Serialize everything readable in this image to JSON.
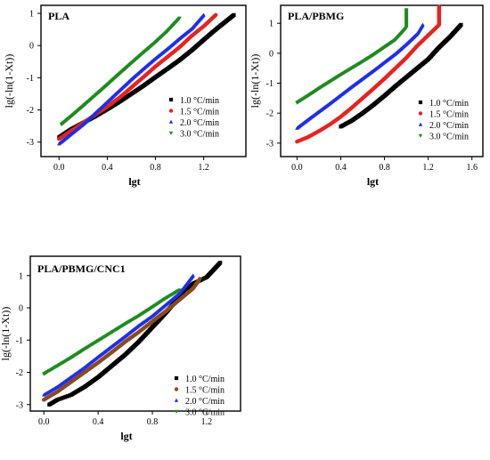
{
  "legend_entries": [
    "1.0 °C/min",
    "1.5 °C/min",
    "2.0 °C/min",
    "3.0 °C/min"
  ],
  "series_colors": [
    "#000000",
    "#e8231f",
    "#1f2ee8",
    "#1f8a1f"
  ],
  "panel3_colors": [
    "#000000",
    "#8b4a1e",
    "#1f2ee8",
    "#1f8a1f"
  ],
  "chart_data": [
    {
      "type": "scatter",
      "title": "PLA",
      "xlabel": "lgt",
      "ylabel": "lg(-ln(1-Xt))",
      "xlim": [
        -0.15,
        1.55
      ],
      "ylim": [
        -3.45,
        1.25
      ],
      "xticks": [
        "0.0",
        "0.4",
        "0.8",
        "1.2"
      ],
      "yticks": [
        "1",
        "0",
        "-1",
        "-2",
        "-3"
      ],
      "legend_position": "lower-right",
      "series": [
        {
          "name": "1.0 °C/min",
          "marker": "square",
          "x": [
            0.0,
            0.1,
            0.2,
            0.3,
            0.4,
            0.5,
            0.6,
            0.7,
            0.8,
            0.9,
            1.0,
            1.1,
            1.2,
            1.3,
            1.4,
            1.45
          ],
          "y": [
            -2.85,
            -2.6,
            -2.4,
            -2.2,
            -1.98,
            -1.75,
            -1.5,
            -1.25,
            -0.98,
            -0.72,
            -0.45,
            -0.15,
            0.18,
            0.5,
            0.8,
            0.95
          ]
        },
        {
          "name": "1.5 °C/min",
          "marker": "circle",
          "x": [
            0.0,
            0.1,
            0.2,
            0.3,
            0.4,
            0.5,
            0.6,
            0.7,
            0.8,
            0.9,
            1.0,
            1.1,
            1.2,
            1.3
          ],
          "y": [
            -2.9,
            -2.65,
            -2.4,
            -2.15,
            -1.9,
            -1.62,
            -1.3,
            -0.98,
            -0.65,
            -0.35,
            -0.05,
            0.3,
            0.6,
            0.95
          ]
        },
        {
          "name": "2.0 °C/min",
          "marker": "triangle-up",
          "x": [
            0.0,
            0.1,
            0.2,
            0.3,
            0.4,
            0.5,
            0.6,
            0.7,
            0.8,
            0.9,
            1.0,
            1.1,
            1.2
          ],
          "y": [
            -3.05,
            -2.75,
            -2.45,
            -2.1,
            -1.75,
            -1.4,
            -1.05,
            -0.72,
            -0.4,
            -0.1,
            0.22,
            0.52,
            0.95
          ]
        },
        {
          "name": "3.0 °C/min",
          "marker": "triangle-down",
          "x": [
            0.02,
            0.1,
            0.2,
            0.3,
            0.4,
            0.5,
            0.6,
            0.7,
            0.8,
            0.9,
            1.0
          ],
          "y": [
            -2.45,
            -2.2,
            -1.88,
            -1.55,
            -1.22,
            -0.88,
            -0.55,
            -0.22,
            0.1,
            0.45,
            0.85
          ]
        }
      ]
    },
    {
      "type": "scatter",
      "title": "PLA/PBMG",
      "xlabel": "lgt",
      "ylabel": "lg(-ln(1-Xt))",
      "xlim": [
        -0.15,
        1.7
      ],
      "ylim": [
        -3.45,
        1.6
      ],
      "xticks": [
        "0.0",
        "0.4",
        "0.8",
        "1.2",
        "1.6"
      ],
      "yticks": [
        "1",
        "0",
        "-1",
        "-2",
        "-3"
      ],
      "legend_position": "lower-right",
      "series": [
        {
          "name": "1.0 °C/min",
          "marker": "square",
          "x": [
            0.4,
            0.5,
            0.6,
            0.7,
            0.8,
            0.9,
            1.0,
            1.1,
            1.2,
            1.3,
            1.4,
            1.5
          ],
          "y": [
            -2.45,
            -2.25,
            -2.0,
            -1.72,
            -1.42,
            -1.1,
            -0.8,
            -0.5,
            -0.2,
            0.2,
            0.55,
            0.95
          ]
        },
        {
          "name": "1.5 °C/min",
          "marker": "circle",
          "x": [
            0.0,
            0.1,
            0.2,
            0.3,
            0.4,
            0.5,
            0.6,
            0.7,
            0.8,
            0.9,
            1.0,
            1.1,
            1.2,
            1.3,
            1.3
          ],
          "y": [
            -2.95,
            -2.8,
            -2.6,
            -2.38,
            -2.12,
            -1.82,
            -1.5,
            -1.18,
            -0.85,
            -0.5,
            -0.15,
            0.25,
            0.6,
            0.95,
            1.55
          ]
        },
        {
          "name": "2.0 °C/min",
          "marker": "triangle-up",
          "x": [
            0.0,
            0.1,
            0.2,
            0.3,
            0.4,
            0.5,
            0.6,
            0.7,
            0.8,
            0.9,
            1.0,
            1.1,
            1.15
          ],
          "y": [
            -2.5,
            -2.22,
            -1.95,
            -1.68,
            -1.4,
            -1.12,
            -0.85,
            -0.58,
            -0.3,
            -0.02,
            0.3,
            0.65,
            0.95
          ]
        },
        {
          "name": "3.0 °C/min",
          "marker": "triangle-down",
          "x": [
            0.0,
            0.1,
            0.2,
            0.3,
            0.4,
            0.5,
            0.6,
            0.7,
            0.8,
            0.9,
            1.0,
            1.0
          ],
          "y": [
            -1.65,
            -1.42,
            -1.18,
            -0.95,
            -0.72,
            -0.5,
            -0.28,
            -0.05,
            0.2,
            0.45,
            0.85,
            1.45
          ]
        }
      ]
    },
    {
      "type": "scatter",
      "title": "PLA/PBMG/CNC1",
      "xlabel": "lgt",
      "ylabel": "lg(-ln(1-Xt))",
      "xlim": [
        -0.1,
        1.45
      ],
      "ylim": [
        -3.2,
        1.6
      ],
      "xticks": [
        "0.0",
        "0.4",
        "0.8",
        "1.2"
      ],
      "yticks": [
        "1",
        "0",
        "-1",
        "-2",
        "-3"
      ],
      "legend_position": "lower-right",
      "series": [
        {
          "name": "1.0 °C/min",
          "marker": "square",
          "x": [
            0.04,
            0.1,
            0.2,
            0.3,
            0.4,
            0.5,
            0.6,
            0.7,
            0.8,
            0.9,
            1.0,
            1.1,
            1.2,
            1.3
          ],
          "y": [
            -3.0,
            -2.85,
            -2.7,
            -2.45,
            -2.15,
            -1.8,
            -1.45,
            -1.05,
            -0.6,
            -0.15,
            0.35,
            0.75,
            0.95,
            1.4
          ]
        },
        {
          "name": "1.5 °C/min",
          "marker": "circle",
          "x": [
            0.0,
            0.1,
            0.2,
            0.3,
            0.4,
            0.5,
            0.6,
            0.7,
            0.8,
            0.9,
            1.0,
            1.1,
            1.15
          ],
          "y": [
            -2.85,
            -2.6,
            -2.3,
            -2.0,
            -1.7,
            -1.38,
            -1.05,
            -0.75,
            -0.42,
            -0.1,
            0.25,
            0.6,
            0.9
          ]
        },
        {
          "name": "2.0 °C/min",
          "marker": "triangle-up",
          "x": [
            0.0,
            0.1,
            0.2,
            0.3,
            0.4,
            0.5,
            0.6,
            0.7,
            0.8,
            0.9,
            1.0,
            1.1
          ],
          "y": [
            -2.7,
            -2.45,
            -2.15,
            -1.85,
            -1.52,
            -1.2,
            -0.88,
            -0.55,
            -0.25,
            0.1,
            0.45,
            1.0
          ]
        },
        {
          "name": "3.0 °C/min",
          "marker": "triangle-down",
          "x": [
            0.0,
            0.1,
            0.2,
            0.3,
            0.4,
            0.5,
            0.6,
            0.7,
            0.8,
            0.9,
            1.0
          ],
          "y": [
            -2.05,
            -1.8,
            -1.55,
            -1.28,
            -1.02,
            -0.76,
            -0.5,
            -0.25,
            0.02,
            0.3,
            0.55
          ]
        }
      ]
    }
  ]
}
